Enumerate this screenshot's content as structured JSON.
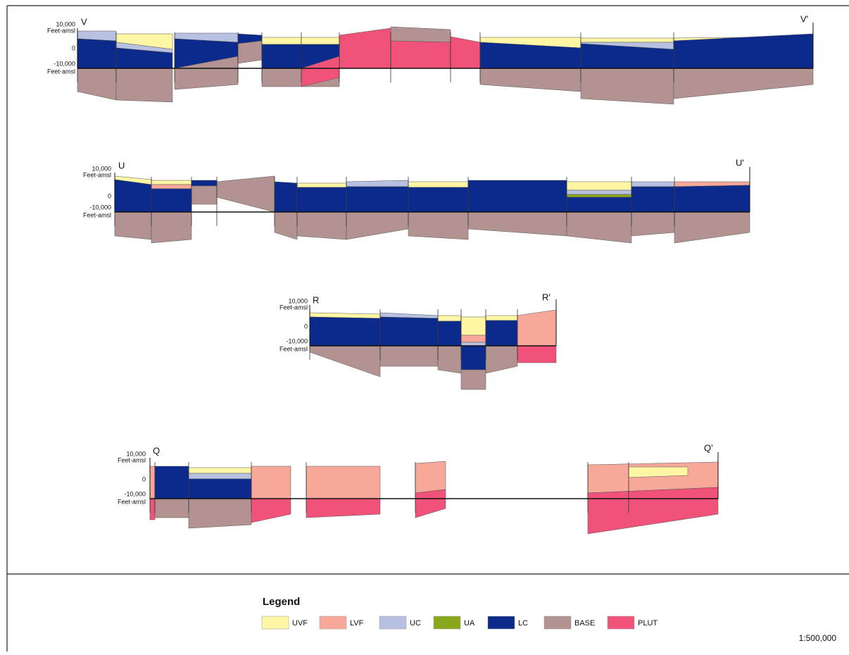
{
  "sections": [
    {
      "start": "V",
      "end": "V'",
      "axis": {
        "top": "10,000",
        "top_unit": "Feet-amsl",
        "zero": "0",
        "bottom": "-10,000",
        "bottom_unit": "Feet-amsl"
      }
    },
    {
      "start": "U",
      "end": "U'",
      "axis": {
        "top": "10,000",
        "top_unit": "Feet-amsl",
        "zero": "0",
        "bottom": "-10,000",
        "bottom_unit": "Feet-amsl"
      }
    },
    {
      "start": "R",
      "end": "R'",
      "axis": {
        "top": "10,000",
        "top_unit": "Feet-amsl",
        "zero": "0",
        "bottom": "-10,000",
        "bottom_unit": "Feet-amsl"
      }
    },
    {
      "start": "Q",
      "end": "Q'",
      "axis": {
        "top": "10,000",
        "top_unit": "Feet-amsl",
        "zero": "0",
        "bottom": "-10,000",
        "bottom_unit": "Feet-amsl"
      }
    }
  ],
  "legend": {
    "title": "Legend",
    "items": [
      {
        "label": "UVF",
        "color": "#fff6a6"
      },
      {
        "label": "LVF",
        "color": "#f7a898"
      },
      {
        "label": "UC",
        "color": "#b9c1e3"
      },
      {
        "label": "UA",
        "color": "#8aa81c"
      },
      {
        "label": "LC",
        "color": "#0b2a8c"
      },
      {
        "label": "BASE",
        "color": "#b39391"
      },
      {
        "label": "PLUT",
        "color": "#f0527a"
      }
    ]
  },
  "scale": "1:500,000"
}
